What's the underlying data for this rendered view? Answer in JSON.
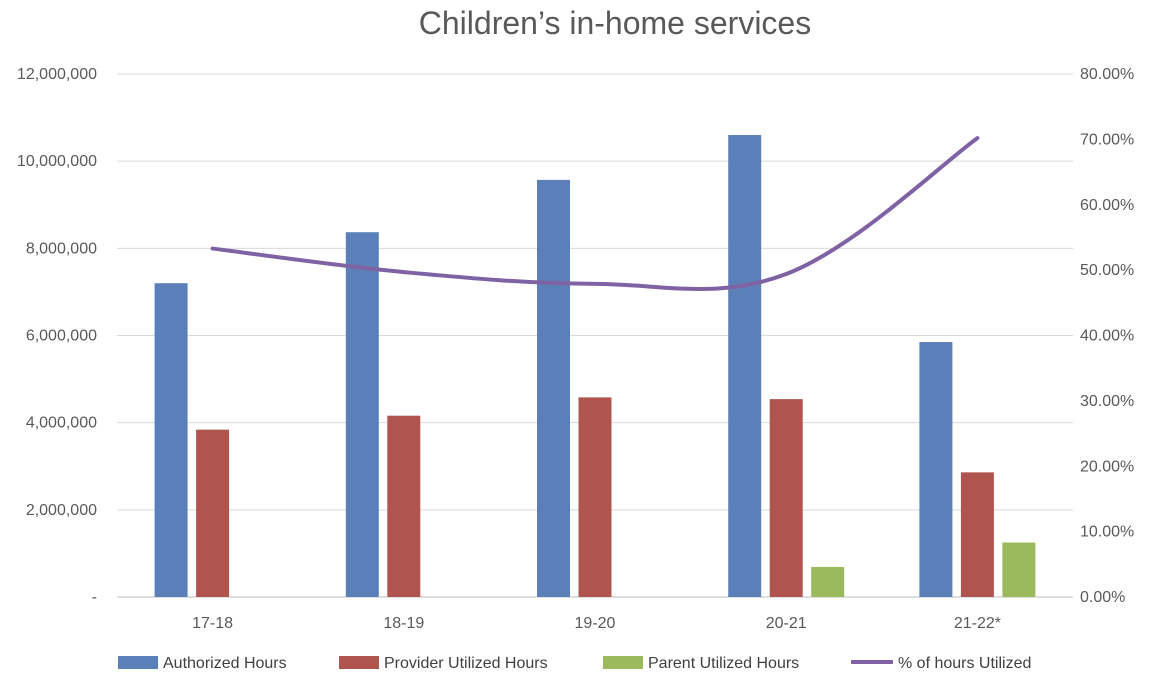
{
  "chart_data": {
    "type": "bar",
    "title": "Children’s in-home services",
    "categories": [
      "17-18",
      "18-19",
      "19-20",
      "20-21",
      "21-22*"
    ],
    "series": [
      {
        "name": "Authorized Hours",
        "type": "bar",
        "axis": "left",
        "color": "#5b80b9",
        "values": [
          7200000,
          8370000,
          9570000,
          10600000,
          5850000
        ]
      },
      {
        "name": "Provider Utilized Hours",
        "type": "bar",
        "axis": "left",
        "color": "#b0544f",
        "values": [
          3840000,
          4160000,
          4580000,
          4540000,
          2860000
        ]
      },
      {
        "name": "Parent Utilized Hours",
        "type": "bar",
        "axis": "left",
        "color": "#9bba5d",
        "values": [
          null,
          null,
          null,
          690000,
          1250000
        ]
      },
      {
        "name": "% of hours Utilized",
        "type": "line",
        "axis": "right",
        "color": "#7f62a4",
        "values": [
          0.533,
          0.497,
          0.479,
          0.494,
          0.702
        ]
      }
    ],
    "left_axis": {
      "min": 0,
      "max": 12000000,
      "ticks": [
        0,
        2000000,
        4000000,
        6000000,
        8000000,
        10000000,
        12000000
      ],
      "tick_labels": [
        "-",
        "2,000,000",
        "4,000,000",
        "6,000,000",
        "8,000,000",
        "10,000,000",
        "12,000,000"
      ]
    },
    "right_axis": {
      "min": 0,
      "max": 0.8,
      "ticks": [
        0,
        0.1,
        0.2,
        0.3,
        0.4,
        0.5,
        0.6,
        0.7,
        0.8
      ],
      "tick_labels": [
        "0.00%",
        "10.00%",
        "20.00%",
        "30.00%",
        "40.00%",
        "50.00%",
        "60.00%",
        "70.00%",
        "80.00%"
      ]
    },
    "grid": true,
    "legend_position": "bottom"
  }
}
